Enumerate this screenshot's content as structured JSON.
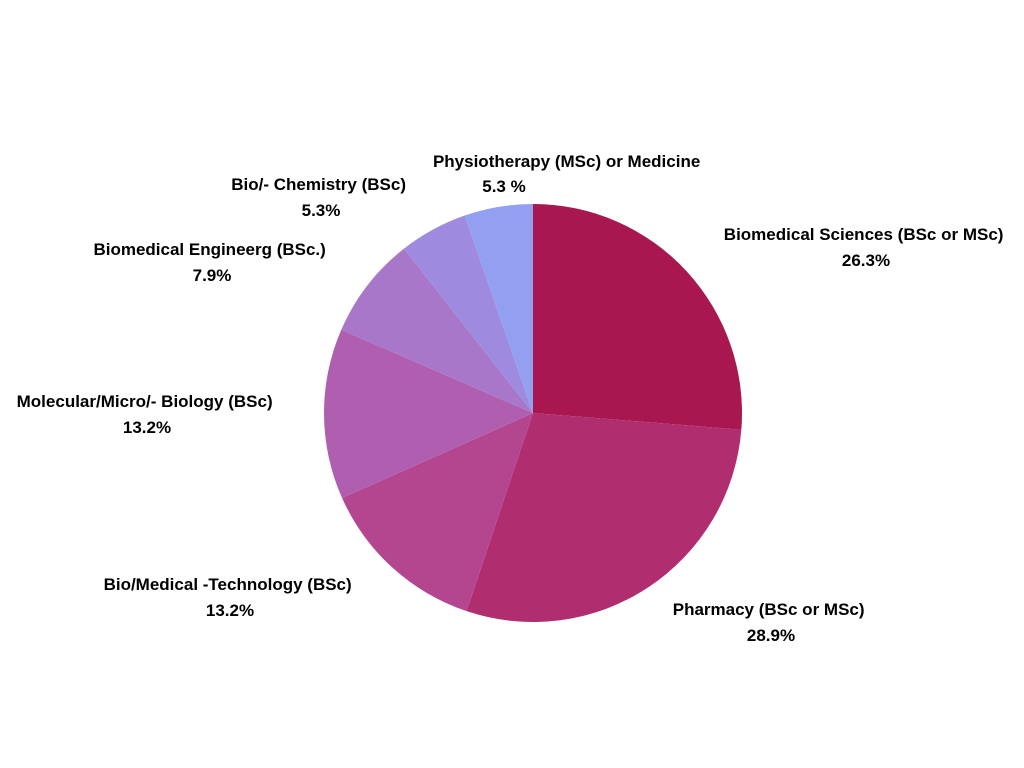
{
  "chart_data": {
    "type": "pie",
    "title": "",
    "slices": [
      {
        "label": "Biomedical Sciences (BSc or MSc)",
        "value_label": "26.3%",
        "value": 26.3,
        "color": "#A8174F"
      },
      {
        "label": "Pharmacy (BSc or MSc)",
        "value_label": "28.9%",
        "value": 28.9,
        "color": "#B02E70"
      },
      {
        "label": "Bio/Medical -Technology (BSc)",
        "value_label": "13.2%",
        "value": 13.2,
        "color": "#B4468F"
      },
      {
        "label": "Molecular/Micro/- Biology (BSc)",
        "value_label": "13.2%",
        "value": 13.2,
        "color": "#B05EB0"
      },
      {
        "label": "Biomedical Engineerg (BSc.)",
        "value_label": "7.9%",
        "value": 7.9,
        "color": "#A877CA"
      },
      {
        "label": "Bio/- Chemistry (BSc)",
        "value_label": "5.3%",
        "value": 5.3,
        "color": "#9E8BE0"
      },
      {
        "label": "Physiotherapy (MSc) or Medicine",
        "value_label": "5.3 %",
        "value": 5.3,
        "color": "#93A0F2"
      }
    ],
    "legend": "none",
    "direction": "clockwise",
    "start": "top"
  }
}
